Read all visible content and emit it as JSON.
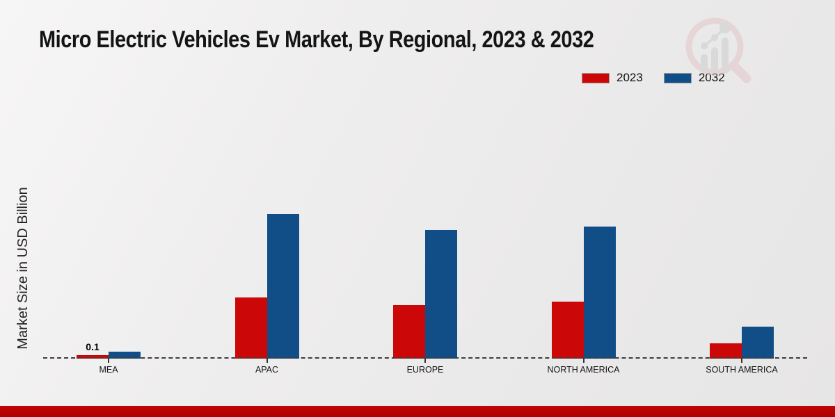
{
  "title": "Micro Electric Vehicles Ev Market, By Regional, 2023 & 2032",
  "y_axis_label": "Market Size in USD Billion",
  "legend": [
    {
      "label": "2023",
      "color": "#cb0707"
    },
    {
      "label": "2032",
      "color": "#114e87"
    }
  ],
  "colors": {
    "series_2023": "#cb0707",
    "series_2032": "#114e87",
    "baseline_dash": "#3d3d3d",
    "bottom_band": "#b90303",
    "background": "#ececeb"
  },
  "watermark": "market-research-magnifier-logo",
  "chart_data": {
    "type": "bar",
    "title": "Micro Electric Vehicles Ev Market, By Regional, 2023 & 2032",
    "categories": [
      "MEA",
      "APAC",
      "EUROPE",
      "NORTH AMERICA",
      "SOUTH AMERICA"
    ],
    "series": [
      {
        "name": "2023",
        "color": "#cb0707",
        "values": [
          0.1,
          1.76,
          1.55,
          1.65,
          0.45
        ]
      },
      {
        "name": "2032",
        "color": "#114e87",
        "values": [
          0.21,
          4.17,
          3.71,
          3.81,
          0.93
        ]
      }
    ],
    "xlabel": "",
    "ylabel": "Market Size in USD Billion",
    "ylim": [
      0,
      4.6
    ],
    "grid": false,
    "axis_line_style": "dashed",
    "legend_position": "top-right",
    "data_labels": [
      {
        "category": "MEA",
        "series": "2023",
        "text": "0.1"
      }
    ]
  }
}
